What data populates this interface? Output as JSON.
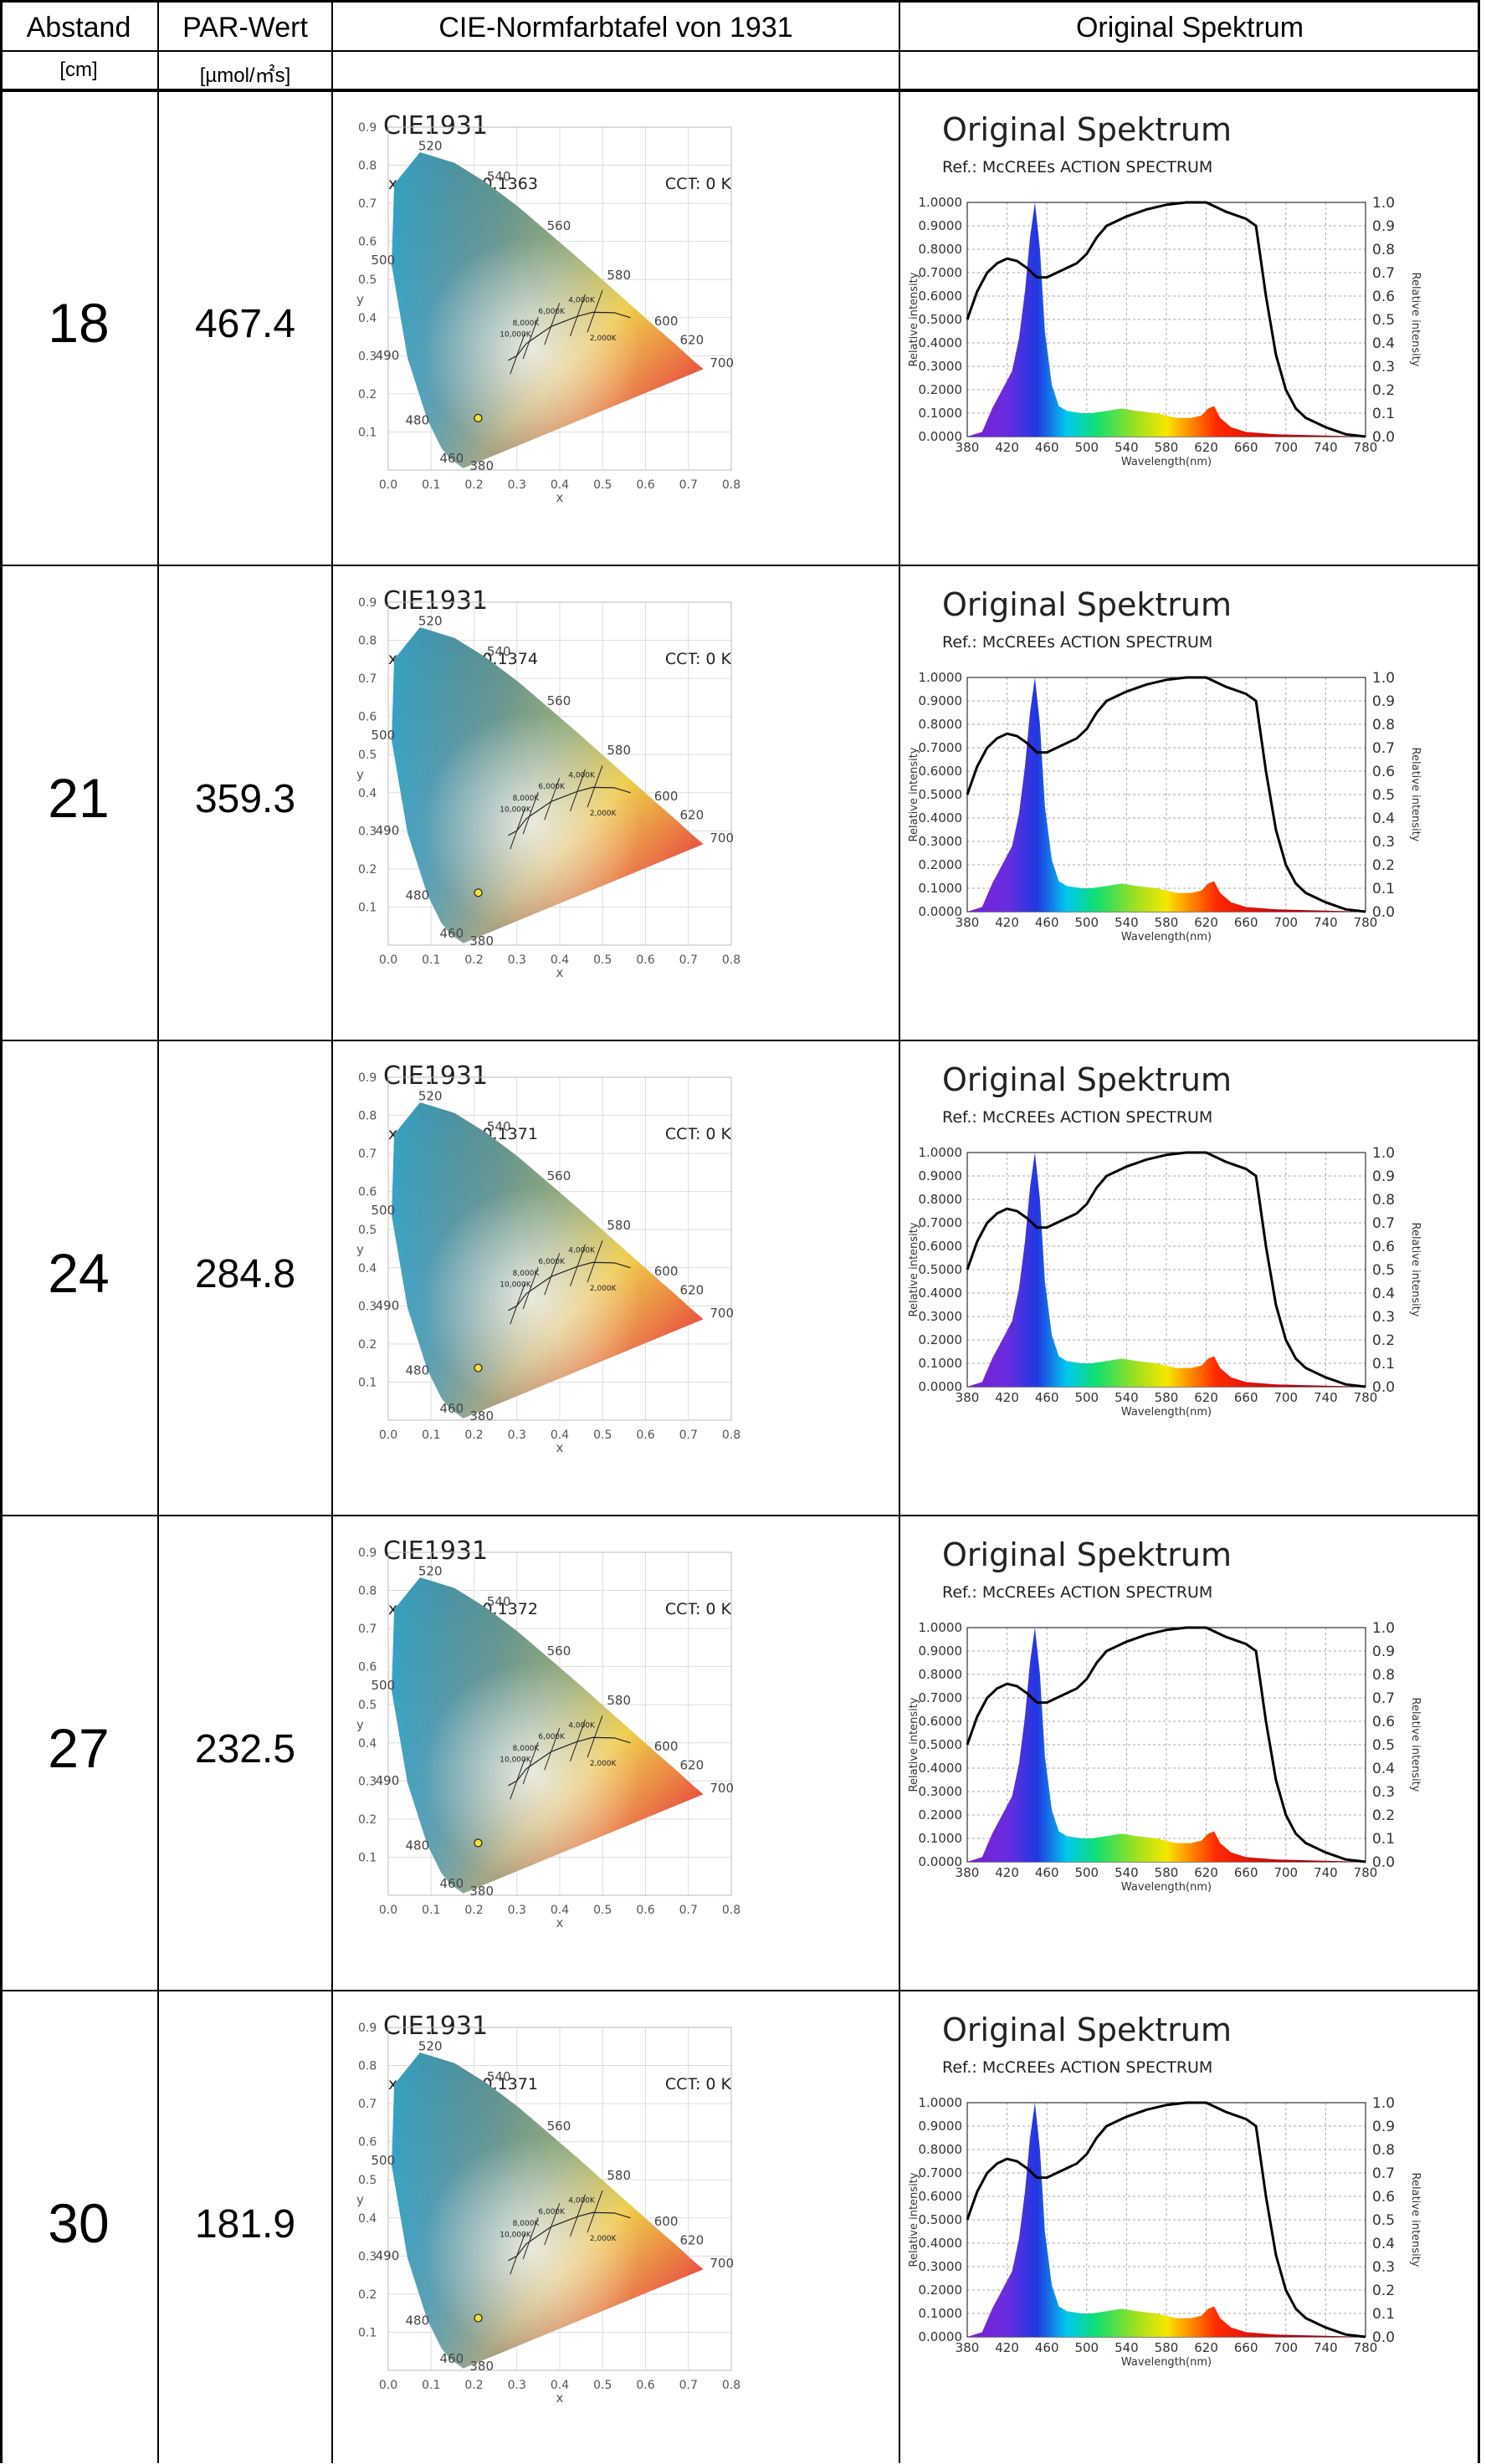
{
  "headers": {
    "distance": "Abstand",
    "par": "PAR-Wert",
    "cie": "CIE-Normfarbtafel von 1931",
    "spectrum": "Original Spektrum",
    "distance_unit": "[cm]",
    "par_unit": "[µmol/㎡s]"
  },
  "cie_common": {
    "title": "CIE1931",
    "cct": "CCT: 0 K",
    "x_axis_label": "x",
    "y_axis_label": "y",
    "x_ticks": [
      "0.0",
      "0.1",
      "0.2",
      "0.3",
      "0.4",
      "0.5",
      "0.6",
      "0.7",
      "0.8"
    ],
    "y_ticks": [
      "0.9",
      "0.8",
      "0.7",
      "0.6",
      "0.5",
      "0.4",
      "0.3",
      "0.2",
      "0.1"
    ],
    "wavelength_labels": [
      "520",
      "540",
      "560",
      "580",
      "600",
      "620",
      "700",
      "500",
      "490",
      "480",
      "460",
      "380"
    ],
    "cct_labels": [
      "4,000K",
      "6,000K",
      "8,000K",
      "10,000K",
      "2,000K"
    ]
  },
  "spectrum_common": {
    "title": "Original Spektrum",
    "subtitle": "Ref.: McCREEs ACTION SPECTRUM",
    "left_ticks": [
      "1.0000",
      "0.9000",
      "0.8000",
      "0.7000",
      "0.6000",
      "0.5000",
      "0.4000",
      "0.3000",
      "0.2000",
      "0.1000",
      "0.0000"
    ],
    "right_ticks": [
      "1.0",
      "0.9",
      "0.8",
      "0.7",
      "0.6",
      "0.5",
      "0.4",
      "0.3",
      "0.2",
      "0.1",
      "0.0"
    ],
    "x_ticks": [
      "380",
      "420",
      "460",
      "500",
      "540",
      "580",
      "620",
      "660",
      "700",
      "740",
      "780"
    ],
    "x_label": "Wavelength(nm)",
    "left_label": "Relative intensity",
    "right_label": "Relative intensity"
  },
  "rows": [
    {
      "distance": "18",
      "par": "467.4",
      "xy": "x:0.2096, y:0.1363",
      "point": [
        0.2096,
        0.1363
      ]
    },
    {
      "distance": "21",
      "par": "359.3",
      "xy": "x:0.2099, y:0.1374",
      "point": [
        0.2099,
        0.1374
      ]
    },
    {
      "distance": "24",
      "par": "284.8",
      "xy": "x:0.2097, y:0.1371",
      "point": [
        0.2097,
        0.1371
      ]
    },
    {
      "distance": "27",
      "par": "232.5",
      "xy": "x:0.2096, y:0.1372",
      "point": [
        0.2096,
        0.1372
      ]
    },
    {
      "distance": "30",
      "par": "181.9",
      "xy": "x:0.2098, y:0.1371",
      "point": [
        0.2098,
        0.1371
      ]
    }
  ]
}
